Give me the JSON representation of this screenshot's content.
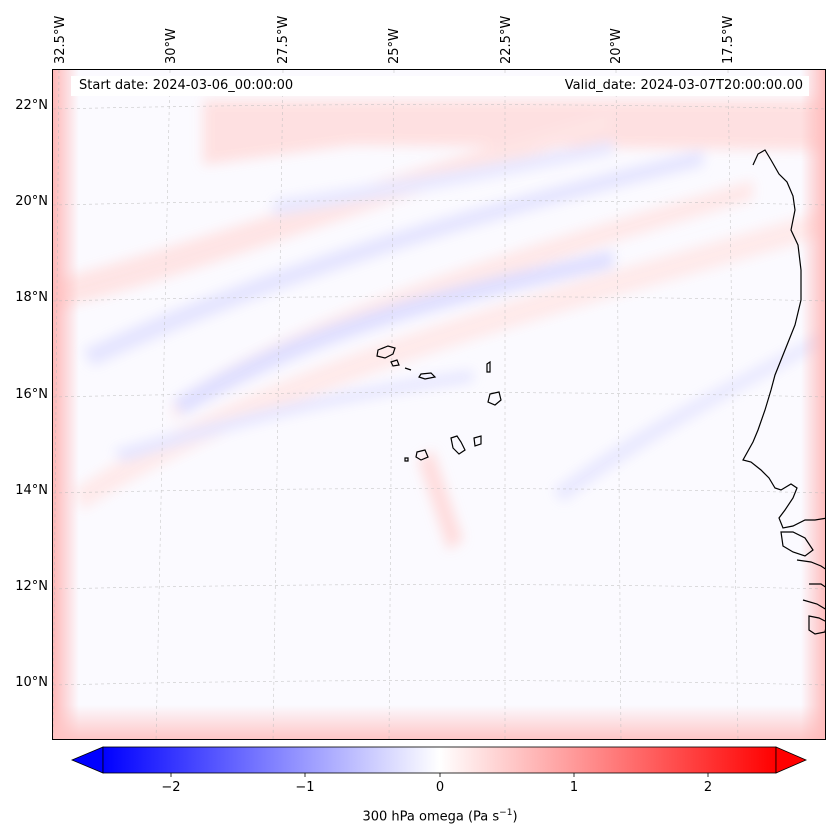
{
  "map": {
    "start_date": "Start date: 2024-03-06_00:00:00",
    "valid_date": "Valid_date: 2024-03-07T20:00:00.00",
    "lon_labels": [
      "32.5°W",
      "30°W",
      "27.5°W",
      "25°W",
      "22.5°W",
      "20°W",
      "17.5°W"
    ],
    "lat_labels": [
      "22°N",
      "20°N",
      "18°N",
      "16°N",
      "14°N",
      "12°N",
      "10°N"
    ]
  },
  "colorbar": {
    "ticks": [
      "−2",
      "−1",
      "0",
      "1",
      "2"
    ],
    "label": "300 hPa omega (Pa s",
    "label_exp": "−1",
    "label_close": ")",
    "colors": {
      "min": "#0000ff",
      "mid": "#ffffff",
      "max": "#ff0000"
    }
  }
}
